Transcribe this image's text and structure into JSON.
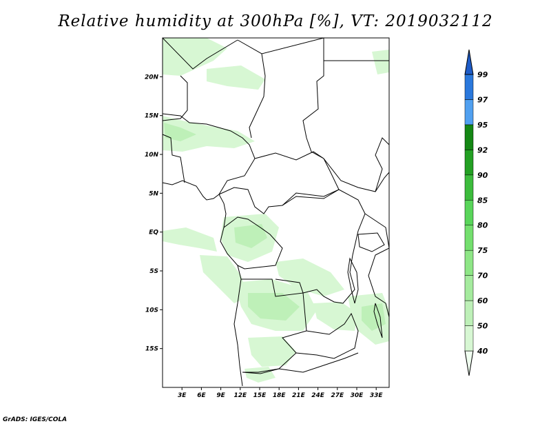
{
  "title": "Relative humidity at 300hPa [%], VT: 2019032112",
  "credit": "GrADS: IGES/COLA",
  "map": {
    "lon_range": [
      0,
      35
    ],
    "lat_range": [
      -20,
      25
    ],
    "x_ticks": [
      "3E",
      "6E",
      "9E",
      "12E",
      "15E",
      "18E",
      "21E",
      "24E",
      "27E",
      "30E",
      "33E"
    ],
    "y_ticks": [
      "20N",
      "15N",
      "10N",
      "5N",
      "EQ",
      "5S",
      "10S",
      "15S"
    ]
  },
  "colorbar": {
    "levels": [
      "40",
      "50",
      "60",
      "70",
      "75",
      "80",
      "85",
      "90",
      "92",
      "95",
      "97",
      "99"
    ],
    "colors": [
      "#f0fff0",
      "#d7f7d3",
      "#bef0b8",
      "#a5eb9e",
      "#8ee686",
      "#74df6e",
      "#59d55a",
      "#3cbc3c",
      "#23a023",
      "#148714",
      "#50a0f0",
      "#2a78dc",
      "#1e5cc8"
    ]
  }
}
